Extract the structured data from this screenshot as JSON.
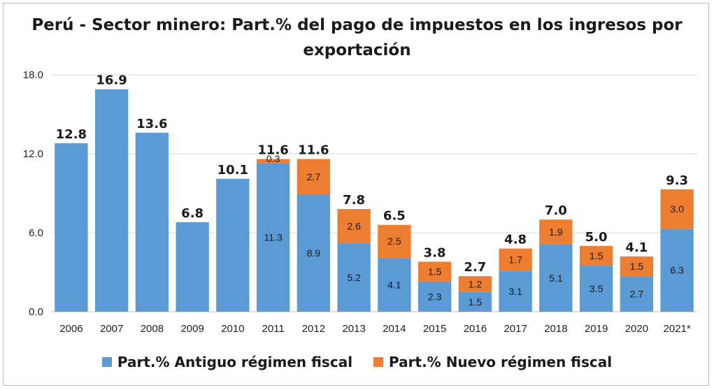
{
  "chart_data": {
    "type": "bar",
    "stacked": true,
    "title": "Perú - Sector minero: Part.% del pago de impuestos en los ingresos por exportación",
    "xlabel": "",
    "ylabel": "",
    "ylim": [
      0,
      18
    ],
    "yticks": [
      "0.0",
      "6.0",
      "12.0",
      "18.0"
    ],
    "grid": true,
    "legend_position": "bottom",
    "categories": [
      "2006",
      "2007",
      "2008",
      "2009",
      "2010",
      "2011",
      "2012",
      "2013",
      "2014",
      "2015",
      "2016",
      "2017",
      "2018",
      "2019",
      "2020",
      "2021*"
    ],
    "series": [
      {
        "name": "Part.% Antiguo régimen fiscal",
        "color": "#5b9bd5",
        "values": [
          12.8,
          16.9,
          13.6,
          6.8,
          10.1,
          11.3,
          8.9,
          5.2,
          4.1,
          2.3,
          1.5,
          3.1,
          5.1,
          3.5,
          2.7,
          6.3
        ],
        "labels": [
          "",
          "",
          "",
          "",
          "",
          "11.3",
          "8.9",
          "5.2",
          "4.1",
          "2.3",
          "1.5",
          "3.1",
          "5.1",
          "3.5",
          "2.7",
          "6.3"
        ]
      },
      {
        "name": "Part.% Nuevo régimen fiscal",
        "color": "#ed7d31",
        "values": [
          0,
          0,
          0,
          0,
          0,
          0.3,
          2.7,
          2.6,
          2.5,
          1.5,
          1.2,
          1.7,
          1.9,
          1.5,
          1.5,
          3.0
        ],
        "labels": [
          "",
          "",
          "",
          "",
          "",
          "0.3",
          "2.7",
          "2.6",
          "2.5",
          "1.5",
          "1.2",
          "1.7",
          "1.9",
          "1.5",
          "1.5",
          "3.0"
        ]
      }
    ],
    "totals": [
      "12.8",
      "16.9",
      "13.6",
      "6.8",
      "10.1",
      "11.6",
      "11.6",
      "7.8",
      "6.5",
      "3.8",
      "2.7",
      "4.8",
      "7.0",
      "5.0",
      "4.1",
      "9.3"
    ]
  }
}
